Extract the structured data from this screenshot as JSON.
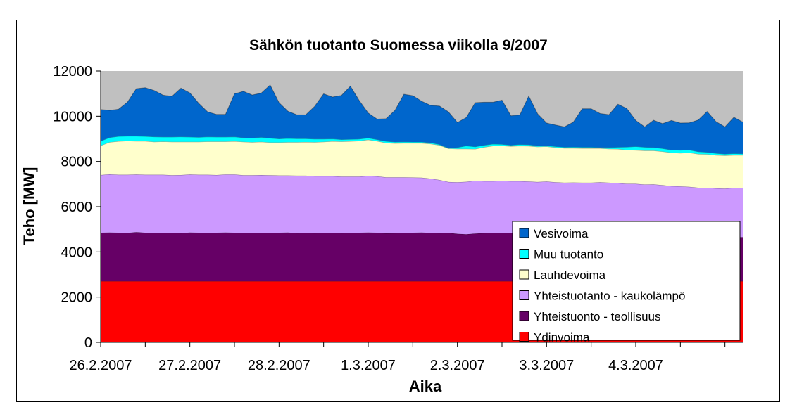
{
  "chart_data": {
    "type": "area",
    "stacked": true,
    "title": "Sähkön tuotanto Suomessa viikolla 9/2007",
    "xlabel": "Aika",
    "ylabel": "Teho [MW]",
    "ylim": [
      0,
      12000
    ],
    "yticks": [
      "0",
      "2000",
      "4000",
      "6000",
      "8000",
      "10000",
      "12000"
    ],
    "xlim": [
      0,
      7.2
    ],
    "x_ticklabels": [
      "26.2.2007",
      "27.2.2007",
      "28.2.2007",
      "1.3.2007",
      "2.3.2007",
      "3.3.2007",
      "4.3.2007"
    ],
    "grid": false,
    "legend_position": "bottom-right",
    "plot_background": "#c0c0c0",
    "x": [
      0,
      0.1,
      0.2,
      0.3,
      0.4,
      0.5,
      0.6,
      0.7,
      0.8,
      0.9,
      1.0,
      1.1,
      1.2,
      1.3,
      1.4,
      1.5,
      1.6,
      1.7,
      1.8,
      1.9,
      2.0,
      2.1,
      2.2,
      2.3,
      2.4,
      2.5,
      2.6,
      2.7,
      2.8,
      2.9,
      3.0,
      3.1,
      3.2,
      3.3,
      3.4,
      3.5,
      3.6,
      3.7,
      3.8,
      3.9,
      4.0,
      4.1,
      4.2,
      4.3,
      4.4,
      4.5,
      4.6,
      4.7,
      4.8,
      4.9,
      5.0,
      5.1,
      5.2,
      5.3,
      5.4,
      5.5,
      5.6,
      5.7,
      5.8,
      5.9,
      6.0,
      6.1,
      6.2,
      6.3,
      6.4,
      6.5,
      6.6,
      6.7,
      6.8,
      6.9,
      7.0,
      7.1,
      7.2
    ],
    "series": [
      {
        "name": "Ydinvoima",
        "color": "#ff0000",
        "values": [
          2700,
          2700,
          2700,
          2700,
          2700,
          2700,
          2700,
          2700,
          2700,
          2700,
          2700,
          2700,
          2700,
          2700,
          2700,
          2700,
          2700,
          2700,
          2700,
          2700,
          2700,
          2700,
          2700,
          2700,
          2700,
          2700,
          2700,
          2700,
          2700,
          2700,
          2700,
          2700,
          2700,
          2700,
          2700,
          2700,
          2700,
          2700,
          2700,
          2700,
          2700,
          2700,
          2700,
          2700,
          2700,
          2700,
          2700,
          2700,
          2700,
          2700,
          2700,
          2700,
          2700,
          2700,
          2700,
          2700,
          2700,
          2700,
          2700,
          2700,
          2700,
          2700,
          2700,
          2700,
          2700,
          2700,
          2700,
          2700,
          2700,
          2700,
          2700,
          2700,
          2700
        ]
      },
      {
        "name": "Yhteistuonto - teollisuus",
        "color": "#660066",
        "values": [
          2150,
          2160,
          2150,
          2140,
          2170,
          2150,
          2140,
          2150,
          2140,
          2130,
          2160,
          2150,
          2140,
          2150,
          2160,
          2150,
          2140,
          2150,
          2140,
          2140,
          2150,
          2160,
          2130,
          2140,
          2130,
          2140,
          2150,
          2130,
          2140,
          2150,
          2160,
          2150,
          2120,
          2130,
          2140,
          2150,
          2160,
          2140,
          2130,
          2140,
          2100,
          2080,
          2110,
          2130,
          2140,
          2150,
          2150,
          2140,
          2120,
          2100,
          2090,
          2080,
          2060,
          2070,
          2040,
          2030,
          2000,
          1990,
          1980,
          1970,
          1960,
          1960,
          1950,
          1950,
          1960,
          1960,
          1950,
          1950,
          1960,
          1950,
          1950,
          1950,
          1950
        ]
      },
      {
        "name": "Yhteistuotanto - kaukolämpö",
        "color": "#cc99ff",
        "values": [
          2550,
          2570,
          2560,
          2570,
          2550,
          2560,
          2570,
          2560,
          2550,
          2570,
          2560,
          2560,
          2570,
          2550,
          2560,
          2570,
          2550,
          2540,
          2560,
          2550,
          2530,
          2520,
          2540,
          2530,
          2520,
          2510,
          2500,
          2500,
          2490,
          2480,
          2500,
          2490,
          2480,
          2470,
          2460,
          2440,
          2420,
          2400,
          2350,
          2250,
          2280,
          2320,
          2340,
          2300,
          2290,
          2290,
          2280,
          2290,
          2290,
          2290,
          2320,
          2300,
          2300,
          2300,
          2320,
          2330,
          2380,
          2370,
          2360,
          2340,
          2350,
          2320,
          2340,
          2300,
          2250,
          2240,
          2230,
          2190,
          2180,
          2160,
          2150,
          2180,
          2180
        ]
      },
      {
        "name": "Lauhdevoima",
        "color": "#ffffcc",
        "values": [
          1300,
          1420,
          1480,
          1500,
          1480,
          1490,
          1460,
          1470,
          1480,
          1470,
          1450,
          1460,
          1470,
          1480,
          1460,
          1470,
          1480,
          1460,
          1470,
          1450,
          1460,
          1470,
          1480,
          1490,
          1500,
          1520,
          1540,
          1550,
          1560,
          1580,
          1600,
          1560,
          1520,
          1500,
          1510,
          1520,
          1530,
          1540,
          1540,
          1480,
          1480,
          1460,
          1400,
          1500,
          1560,
          1560,
          1540,
          1560,
          1570,
          1560,
          1550,
          1540,
          1530,
          1520,
          1520,
          1520,
          1500,
          1500,
          1510,
          1500,
          1490,
          1500,
          1490,
          1490,
          1480,
          1470,
          1510,
          1490,
          1480,
          1470,
          1460,
          1450,
          1450
        ]
      },
      {
        "name": "Muu tuotanto",
        "color": "#00ffff",
        "values": [
          200,
          210,
          220,
          210,
          220,
          210,
          220,
          200,
          210,
          220,
          210,
          200,
          210,
          200,
          200,
          200,
          180,
          190,
          200,
          190,
          160,
          170,
          160,
          150,
          140,
          120,
          110,
          90,
          90,
          80,
          80,
          70,
          70,
          60,
          60,
          50,
          50,
          50,
          30,
          20,
          60,
          130,
          100,
          90,
          80,
          60,
          50,
          60,
          60,
          50,
          40,
          40,
          40,
          50,
          50,
          50,
          40,
          60,
          80,
          130,
          160,
          150,
          140,
          130,
          120,
          130,
          120,
          100,
          90,
          80,
          70,
          70,
          60
        ]
      },
      {
        "name": "Vesivoima",
        "color": "#0066cc",
        "values": [
          1400,
          1200,
          1200,
          1500,
          2100,
          2150,
          2050,
          1850,
          1800,
          2150,
          1950,
          1500,
          1100,
          1000,
          1000,
          1900,
          2050,
          1900,
          1950,
          2350,
          1600,
          1200,
          1050,
          1050,
          1450,
          2000,
          1850,
          1950,
          2350,
          1700,
          1100,
          900,
          1000,
          1400,
          2100,
          2050,
          1800,
          1650,
          1700,
          1600,
          1100,
          1250,
          1950,
          1900,
          1850,
          1950,
          1300,
          1300,
          2150,
          1400,
          1000,
          950,
          900,
          1100,
          1700,
          1700,
          1500,
          1450,
          1900,
          1700,
          1150,
          900,
          1200,
          1100,
          1300,
          1200,
          1200,
          1400,
          1800,
          1400,
          1200,
          1600,
          1400
        ]
      }
    ]
  }
}
